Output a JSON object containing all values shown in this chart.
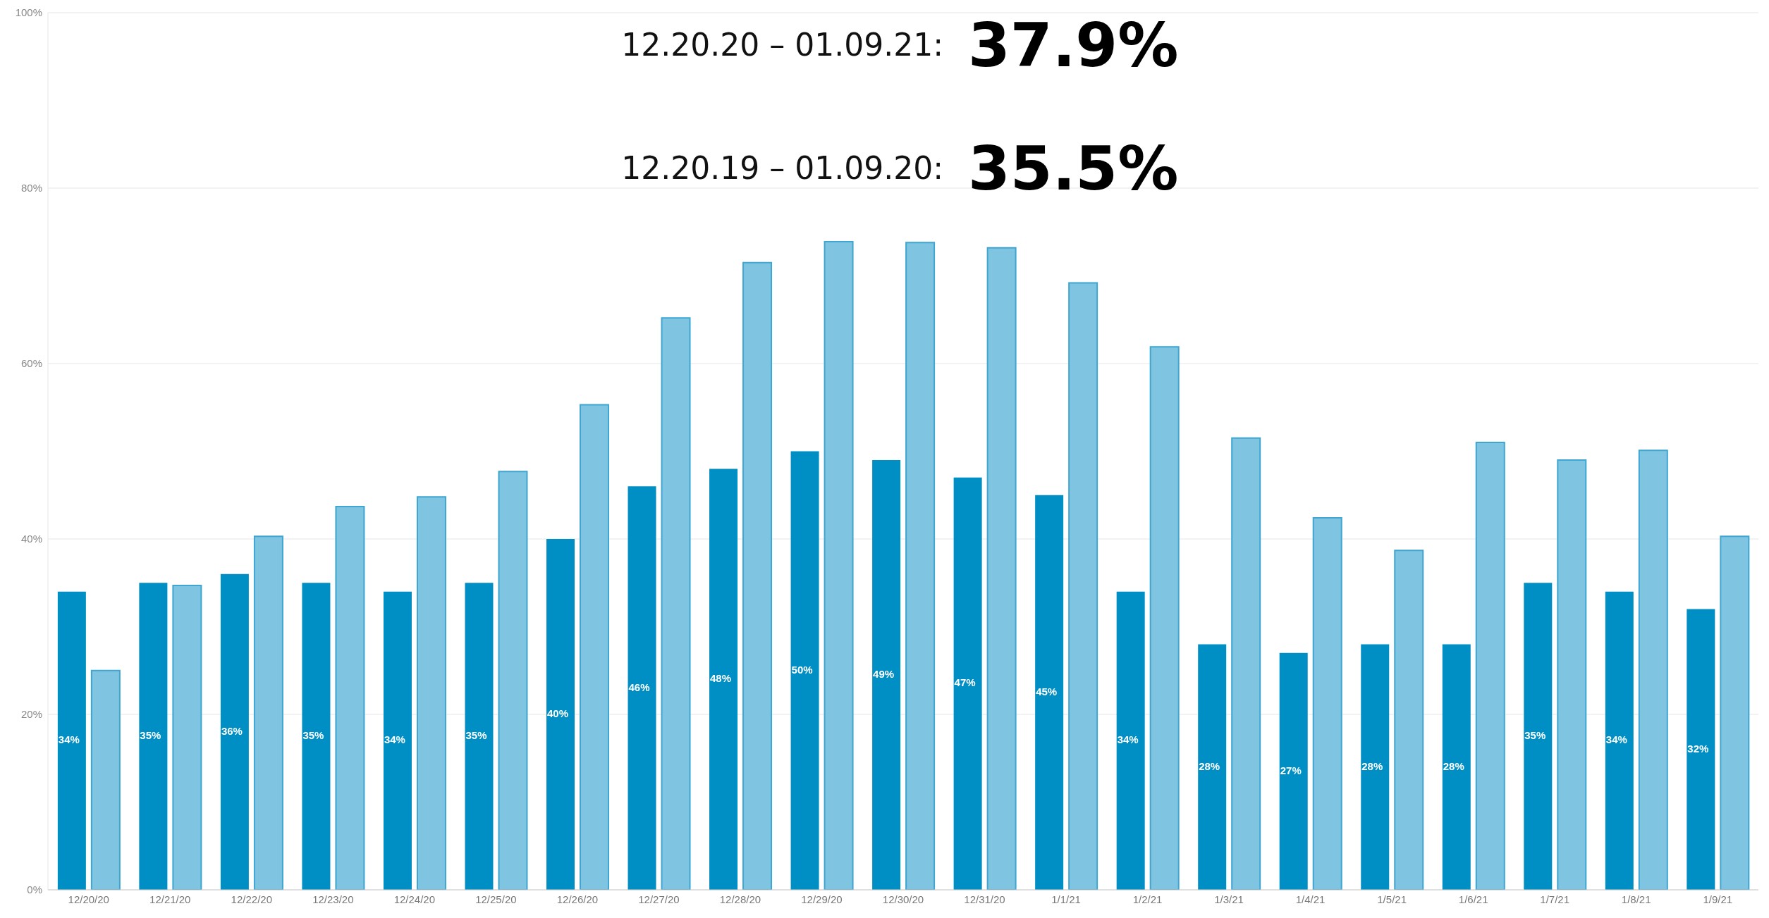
{
  "chart_data": {
    "type": "bar",
    "categories": [
      "12/20/20",
      "12/21/20",
      "12/22/20",
      "12/23/20",
      "12/24/20",
      "12/25/20",
      "12/26/20",
      "12/27/20",
      "12/28/20",
      "12/29/20",
      "12/30/20",
      "12/31/20",
      "1/1/21",
      "1/2/21",
      "1/3/21",
      "1/4/21",
      "1/5/21",
      "1/6/21",
      "1/7/21",
      "1/8/21",
      "1/9/21"
    ],
    "series": [
      {
        "color": "#008fc5",
        "values": [
          34,
          35,
          36,
          35,
          34,
          35,
          40,
          46,
          48,
          50,
          49,
          47,
          45,
          34,
          28,
          27,
          28,
          28,
          35,
          34,
          32
        ],
        "value_labels": [
          "34%",
          "35%",
          "36%",
          "35%",
          "34%",
          "35%",
          "40%",
          "46%",
          "48%",
          "50%",
          "49%",
          "47%",
          "45%",
          "34%",
          "28%",
          "27%",
          "28%",
          "28%",
          "35%",
          "34%",
          "32%"
        ]
      },
      {
        "color": "#7fc4e0",
        "values": [
          25,
          34.7,
          40.3,
          43.7,
          44.8,
          47.7,
          55.3,
          65.2,
          71.5,
          73.9,
          73.8,
          73.2,
          69.2,
          61.9,
          51.5,
          42.4,
          38.7,
          51,
          49,
          50.1,
          40.3
        ]
      }
    ],
    "ylim": [
      0,
      100
    ],
    "yticks": [
      {
        "value": 0,
        "label": "0%"
      },
      {
        "value": 20,
        "label": "20%"
      },
      {
        "value": 40,
        "label": "40%"
      },
      {
        "value": 60,
        "label": "60%"
      },
      {
        "value": 80,
        "label": "80%"
      },
      {
        "value": 100,
        "label": "100%"
      }
    ],
    "grid": "y",
    "legend": false,
    "annotations": [
      "12.20.20 – 01.09.21:",
      "37.9%",
      "12.20.19 – 01.09.20:",
      "35.5%"
    ]
  }
}
